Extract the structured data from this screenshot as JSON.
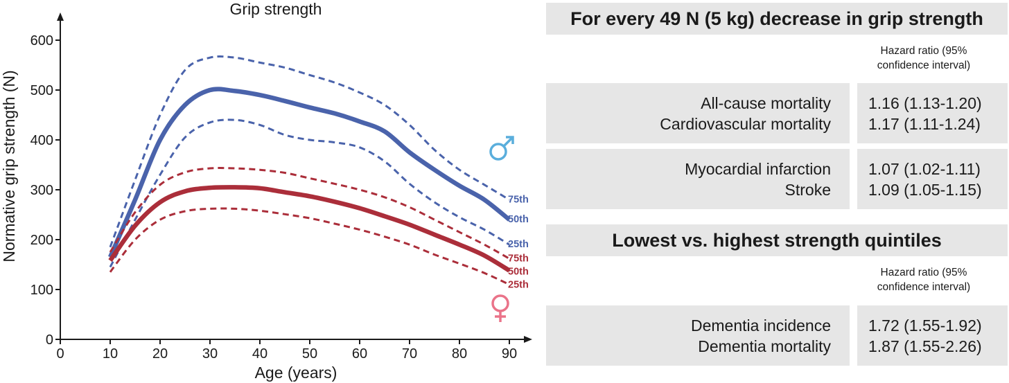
{
  "chart_data": {
    "type": "line",
    "title": "Grip strength",
    "xlabel": "Age (years)",
    "ylabel": "Normative grip strength (N)",
    "xlim": [
      0,
      90
    ],
    "ylim": [
      0,
      600
    ],
    "xticks": [
      0,
      10,
      20,
      30,
      40,
      50,
      60,
      70,
      80,
      90
    ],
    "yticks": [
      0,
      100,
      200,
      300,
      400,
      500,
      600
    ],
    "grid": false,
    "groups": [
      {
        "sex_symbol": "♂",
        "color": "#4a63ab",
        "series": [
          {
            "name": "75th",
            "style": "dashed",
            "x": [
              10,
              15,
              20,
              25,
              30,
              35,
              40,
              45,
              50,
              55,
              60,
              65,
              70,
              75,
              80,
              85,
              90
            ],
            "y": [
              185,
              320,
              450,
              540,
              565,
              565,
              555,
              545,
              530,
              515,
              495,
              470,
              430,
              380,
              340,
              310,
              280
            ]
          },
          {
            "name": "50th",
            "style": "solid",
            "x": [
              10,
              15,
              20,
              25,
              30,
              35,
              40,
              45,
              50,
              55,
              60,
              65,
              70,
              75,
              80,
              85,
              90
            ],
            "y": [
              165,
              280,
              400,
              470,
              500,
              498,
              490,
              478,
              465,
              453,
              437,
              417,
              375,
              340,
              308,
              280,
              240
            ]
          },
          {
            "name": "25th",
            "style": "dashed",
            "x": [
              10,
              15,
              20,
              25,
              30,
              35,
              40,
              45,
              50,
              55,
              60,
              65,
              70,
              75,
              80,
              85,
              90
            ],
            "y": [
              145,
              240,
              330,
              405,
              435,
              440,
              430,
              410,
              400,
              395,
              385,
              357,
              312,
              275,
              245,
              220,
              190
            ]
          }
        ]
      },
      {
        "sex_symbol": "♀",
        "color": "#ab2e3a",
        "series": [
          {
            "name": "75th",
            "style": "dashed",
            "x": [
              10,
              15,
              20,
              25,
              30,
              35,
              40,
              45,
              50,
              55,
              60,
              65,
              70,
              75,
              80,
              85,
              90
            ],
            "y": [
              175,
              255,
              310,
              335,
              343,
              343,
              340,
              334,
              323,
              312,
              300,
              285,
              265,
              240,
              215,
              190,
              162
            ]
          },
          {
            "name": "50th",
            "style": "solid",
            "x": [
              10,
              15,
              20,
              25,
              30,
              35,
              40,
              45,
              50,
              55,
              60,
              65,
              70,
              75,
              80,
              85,
              90
            ],
            "y": [
              158,
              228,
              275,
              297,
              304,
              305,
              303,
              295,
              287,
              276,
              263,
              247,
              230,
              210,
              190,
              168,
              138
            ]
          },
          {
            "name": "25th",
            "style": "dashed",
            "x": [
              10,
              15,
              20,
              25,
              30,
              35,
              40,
              45,
              50,
              55,
              60,
              65,
              70,
              75,
              80,
              85,
              90
            ],
            "y": [
              135,
              200,
              240,
              257,
              262,
              262,
              258,
              251,
              243,
              232,
              220,
              206,
              190,
              170,
              152,
              133,
              110
            ]
          }
        ]
      }
    ]
  },
  "panel": {
    "section1": {
      "heading": "For every 49 N (5 kg) decrease in grip strength",
      "hr_note": [
        "Hazard ratio (95%",
        "confidence interval)"
      ],
      "rows": [
        {
          "labels": [
            "All-cause mortality",
            "Cardiovascular mortality"
          ],
          "values": [
            "1.16 (1.13-1.20)",
            "1.17 (1.11-1.24)"
          ]
        },
        {
          "labels": [
            "Myocardial infarction",
            "Stroke"
          ],
          "values": [
            "1.07 (1.02-1.11)",
            "1.09 (1.05-1.15)"
          ]
        }
      ]
    },
    "section2": {
      "heading": "Lowest vs. highest strength quintiles",
      "hr_note": [
        "Hazard ratio (95%",
        "confidence interval)"
      ],
      "rows": [
        {
          "labels": [
            "Dementia incidence",
            "Dementia mortality"
          ],
          "values": [
            "1.72 (1.55-1.92)",
            "1.87 (1.55-2.26)"
          ]
        }
      ]
    }
  },
  "symbol_colors": {
    "male": "#5aaedc",
    "female": "#ea7389"
  }
}
